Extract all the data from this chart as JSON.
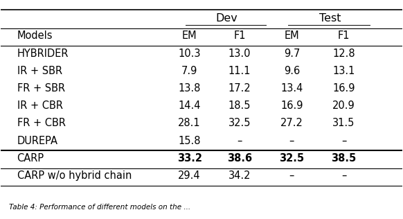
{
  "group_headers": [
    "Dev",
    "Test"
  ],
  "col_headers": [
    "Models",
    "EM",
    "F1",
    "EM",
    "F1"
  ],
  "rows": [
    {
      "model": "HYBRIDER",
      "dev_em": "10.3",
      "dev_f1": "13.0",
      "test_em": "9.7",
      "test_f1": "12.8",
      "bold": false
    },
    {
      "model": "IR + SBR",
      "dev_em": "7.9",
      "dev_f1": "11.1",
      "test_em": "9.6",
      "test_f1": "13.1",
      "bold": false
    },
    {
      "model": "FR + SBR",
      "dev_em": "13.8",
      "dev_f1": "17.2",
      "test_em": "13.4",
      "test_f1": "16.9",
      "bold": false
    },
    {
      "model": "IR + CBR",
      "dev_em": "14.4",
      "dev_f1": "18.5",
      "test_em": "16.9",
      "test_f1": "20.9",
      "bold": false
    },
    {
      "model": "FR + CBR",
      "dev_em": "28.1",
      "dev_f1": "32.5",
      "test_em": "27.2",
      "test_f1": "31.5",
      "bold": false
    },
    {
      "model": "DUREPA",
      "dev_em": "15.8",
      "dev_f1": "–",
      "test_em": "–",
      "test_f1": "–",
      "bold": false
    },
    {
      "model": "CARP",
      "dev_em": "33.2",
      "dev_f1": "38.6",
      "test_em": "32.5",
      "test_f1": "38.5",
      "bold": true
    },
    {
      "model": "CARP w/o hybrid chain",
      "dev_em": "29.4",
      "dev_f1": "34.2",
      "test_em": "–",
      "test_f1": "–",
      "bold": false
    }
  ],
  "thick_separator_after_row": 5,
  "bg_color": "#ffffff",
  "text_color": "#000000",
  "font_size": 10.5,
  "caption": "Table 4: Performance of different models on the ..."
}
